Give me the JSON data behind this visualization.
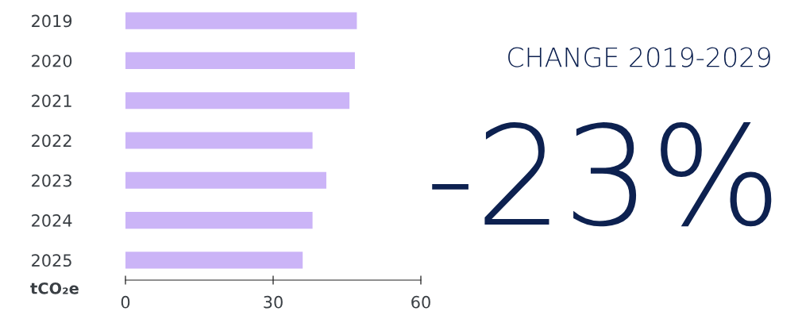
{
  "chart_data": {
    "type": "bar",
    "orientation": "horizontal",
    "ylabel": "tCO₂e",
    "categories": [
      "2019",
      "2020",
      "2021",
      "2022",
      "2023",
      "2024",
      "2025"
    ],
    "values": [
      47.0,
      46.6,
      45.5,
      38.0,
      40.8,
      38.0,
      36.0
    ],
    "color": "#cbb4f7",
    "xlim": [
      0,
      60
    ],
    "xticks": [
      0,
      30,
      60
    ],
    "grid": false,
    "legend": false,
    "annotations": [
      "CHANGE 2019-2029",
      "-23%"
    ]
  }
}
